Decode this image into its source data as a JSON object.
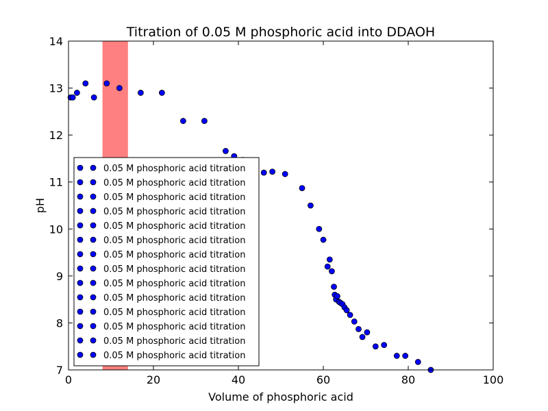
{
  "chart_data": {
    "type": "scatter",
    "title": "Titration of 0.05 M phosphoric acid into DDAOH",
    "xlabel": "Volume of phosphoric acid",
    "ylabel": "pH",
    "xlim": [
      0,
      100
    ],
    "ylim": [
      7,
      14
    ],
    "xticks": [
      "0",
      "20",
      "40",
      "60",
      "80",
      "100"
    ],
    "yticks": [
      "7",
      "8",
      "9",
      "10",
      "11",
      "12",
      "13",
      "14"
    ],
    "grid": false,
    "marker_color": "#0000ff",
    "highlight_band": {
      "x_from": 8,
      "x_to": 14,
      "color": "#ff8080"
    },
    "legend": {
      "placement": "lower left",
      "entries": [
        "0.05 M phosphoric acid titration",
        "0.05 M phosphoric acid titration",
        "0.05 M phosphoric acid titration",
        "0.05 M phosphoric acid titration",
        "0.05 M phosphoric acid titration",
        "0.05 M phosphoric acid titration",
        "0.05 M phosphoric acid titration",
        "0.05 M phosphoric acid titration",
        "0.05 M phosphoric acid titration",
        "0.05 M phosphoric acid titration",
        "0.05 M phosphoric acid titration",
        "0.05 M phosphoric acid titration",
        "0.05 M phosphoric acid titration",
        "0.05 M phosphoric acid titration"
      ]
    },
    "points": [
      {
        "x": 0.5,
        "y": 12.8
      },
      {
        "x": 1,
        "y": 12.8
      },
      {
        "x": 2,
        "y": 12.9
      },
      {
        "x": 4,
        "y": 13.1
      },
      {
        "x": 6,
        "y": 12.8
      },
      {
        "x": 9,
        "y": 13.1
      },
      {
        "x": 12,
        "y": 13.0
      },
      {
        "x": 17,
        "y": 12.9
      },
      {
        "x": 22,
        "y": 12.9
      },
      {
        "x": 27,
        "y": 12.3
      },
      {
        "x": 32,
        "y": 12.3
      },
      {
        "x": 37,
        "y": 11.66
      },
      {
        "x": 39,
        "y": 11.55
      },
      {
        "x": 41,
        "y": 11.47
      },
      {
        "x": 46,
        "y": 11.2
      },
      {
        "x": 48,
        "y": 11.22
      },
      {
        "x": 51,
        "y": 11.17
      },
      {
        "x": 55,
        "y": 10.87
      },
      {
        "x": 57,
        "y": 10.5
      },
      {
        "x": 59,
        "y": 10.0
      },
      {
        "x": 60,
        "y": 9.77
      },
      {
        "x": 61,
        "y": 9.2
      },
      {
        "x": 61.5,
        "y": 9.35
      },
      {
        "x": 62,
        "y": 9.1
      },
      {
        "x": 62.5,
        "y": 8.77
      },
      {
        "x": 62.7,
        "y": 8.6
      },
      {
        "x": 63,
        "y": 8.5
      },
      {
        "x": 63.3,
        "y": 8.57
      },
      {
        "x": 63.7,
        "y": 8.45
      },
      {
        "x": 64,
        "y": 8.43
      },
      {
        "x": 64.5,
        "y": 8.4
      },
      {
        "x": 65,
        "y": 8.33
      },
      {
        "x": 65.5,
        "y": 8.27
      },
      {
        "x": 66.3,
        "y": 8.17
      },
      {
        "x": 67.3,
        "y": 8.03
      },
      {
        "x": 68.3,
        "y": 7.87
      },
      {
        "x": 69.2,
        "y": 7.7
      },
      {
        "x": 70.3,
        "y": 7.8
      },
      {
        "x": 72.3,
        "y": 7.5
      },
      {
        "x": 74.3,
        "y": 7.53
      },
      {
        "x": 77.3,
        "y": 7.3
      },
      {
        "x": 79.3,
        "y": 7.3
      },
      {
        "x": 82.3,
        "y": 7.17
      },
      {
        "x": 85.3,
        "y": 7.0
      }
    ]
  }
}
